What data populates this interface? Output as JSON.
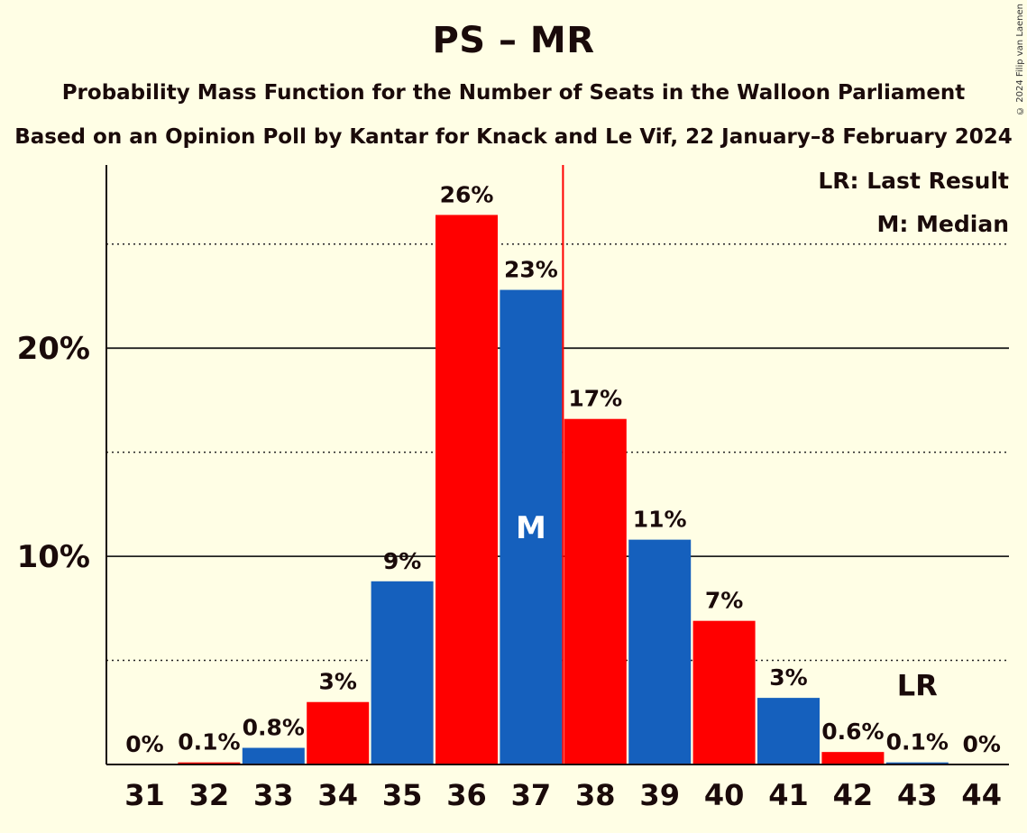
{
  "chart_data": {
    "type": "bar",
    "title": "PS – MR",
    "subtitle": "Probability Mass Function for the Number of Seats in the Walloon Parliament",
    "subtitle2": "Based on an Opinion Poll by Kantar for Knack and Le Vif, 22 January–8 February 2024",
    "copyright": "© 2024 Filip van Laenen",
    "categories": [
      "31",
      "32",
      "33",
      "34",
      "35",
      "36",
      "37",
      "38",
      "39",
      "40",
      "41",
      "42",
      "43",
      "44"
    ],
    "values": [
      0,
      0.1,
      0.8,
      3,
      8.8,
      26.4,
      22.8,
      16.6,
      10.8,
      6.9,
      3.2,
      0.6,
      0.1,
      0
    ],
    "data_labels": [
      "0%",
      "0.1%",
      "0.8%",
      "3%",
      "9%",
      "26%",
      "23%",
      "17%",
      "11%",
      "7%",
      "3%",
      "0.6%",
      "0.1%",
      "0%"
    ],
    "bar_colors": [
      "#FF0000",
      "#FF0000",
      "#1560BD",
      "#FF0000",
      "#1560BD",
      "#FF0000",
      "#1560BD",
      "#FF0000",
      "#1560BD",
      "#FF0000",
      "#1560BD",
      "#FF0000",
      "#1560BD",
      "#FF0000"
    ],
    "ylim": [
      0,
      28.8
    ],
    "y_ticks": [
      {
        "value": 10,
        "label": "10%"
      },
      {
        "value": 20,
        "label": "20%"
      }
    ],
    "minor_gridlines": [
      5,
      15,
      25
    ],
    "median_seat": "37",
    "median_label": "M",
    "median_line_after": "37",
    "last_result_seat": "43",
    "last_result_label": "LR",
    "legend": [
      "LR: Last Result",
      "M: Median"
    ],
    "legend_position": "top-right",
    "xlabel": "",
    "ylabel": ""
  }
}
